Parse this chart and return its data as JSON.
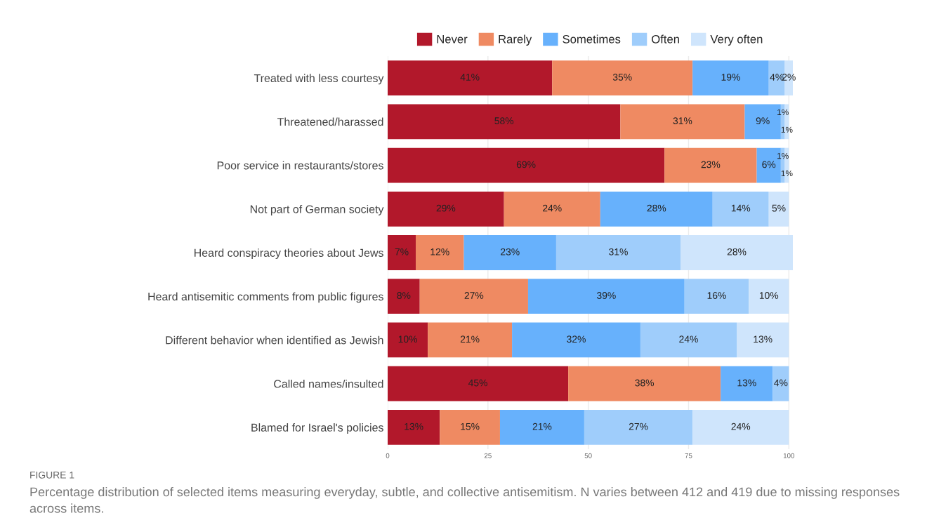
{
  "chart_data": {
    "type": "bar",
    "orientation": "horizontal",
    "stacked": true,
    "categories": [
      "Treated with less courtesy",
      "Threatened/harassed",
      "Poor service in restaurants/stores",
      "Not part of German society",
      "Heard conspiracy theories about Jews",
      "Heard antisemitic comments from public figures",
      "Different behavior when identified as Jewish",
      "Called names/insulted",
      "Blamed for Israel's policies"
    ],
    "series": [
      {
        "name": "Never",
        "color": "#b2182b",
        "values": [
          41,
          58,
          69,
          29,
          7,
          8,
          10,
          45,
          13
        ],
        "value_labels": [
          "41%",
          "58%",
          "69%",
          "29%",
          "7%",
          "8%",
          "10%",
          "45%",
          "13%"
        ]
      },
      {
        "name": "Rarely",
        "color": "#ef8a62",
        "values": [
          35,
          31,
          23,
          24,
          12,
          27,
          21,
          38,
          15
        ],
        "value_labels": [
          "35%",
          "31%",
          "23%",
          "24%",
          "12%",
          "27%",
          "21%",
          "38%",
          "15%"
        ]
      },
      {
        "name": "Sometimes",
        "color": "#67b1fc",
        "values": [
          19,
          9,
          6,
          28,
          23,
          39,
          32,
          13,
          21
        ],
        "value_labels": [
          "19%",
          "9%",
          "6%",
          "28%",
          "23%",
          "39%",
          "32%",
          "13%",
          "21%"
        ]
      },
      {
        "name": "Often",
        "color": "#9fcdfb",
        "values": [
          4,
          1,
          1,
          14,
          31,
          16,
          24,
          4,
          27
        ],
        "value_labels": [
          "4%",
          "1%",
          "1%",
          "14%",
          "31%",
          "16%",
          "24%",
          "4%",
          "27%"
        ]
      },
      {
        "name": "Very often",
        "color": "#cfe5fc",
        "values": [
          2,
          1,
          1,
          5,
          28,
          10,
          13,
          null,
          24
        ],
        "value_labels": [
          "2%",
          "1%",
          "1%",
          "5%",
          "28%",
          "10%",
          "13%",
          null,
          "24%"
        ]
      }
    ],
    "xlim": [
      0,
      101
    ],
    "xticks": [
      0,
      25,
      50,
      75,
      100
    ],
    "grid": "x",
    "legend": "top",
    "annotations": [
      "FIGURE 1",
      "Percentage distribution of selected items measuring everyday, subtle, and collective antisemitism. N varies between 412 and 419 due to missing responses across items."
    ]
  }
}
